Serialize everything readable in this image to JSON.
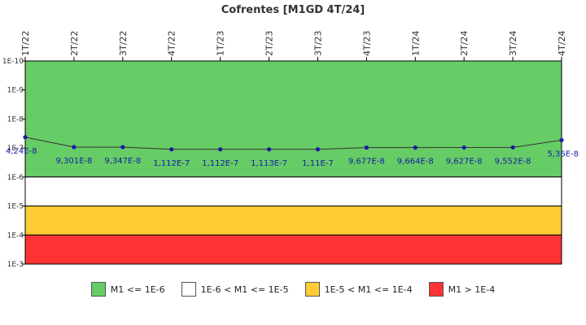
{
  "chart_data": {
    "type": "line",
    "title": "Cofrentes [M1GD 4T/24]",
    "xlabel": "",
    "ylabel": "",
    "y_scale": "log",
    "y_axis_inverted": true,
    "ylim": [
      1e-10,
      0.001
    ],
    "y_ticks": [
      "1E-10",
      "1E-9",
      "1E-8",
      "1E-7",
      "1E-6",
      "1E-5",
      "1E-4",
      "1E-3"
    ],
    "y_tick_values": [
      1e-10,
      1e-09,
      1e-08,
      1e-07,
      1e-06,
      1e-05,
      0.0001,
      0.001
    ],
    "categories": [
      "1T/22",
      "2T/22",
      "3T/22",
      "4T/22",
      "1T/23",
      "2T/23",
      "3T/23",
      "4T/23",
      "1T/24",
      "2T/24",
      "3T/24",
      "4T/24"
    ],
    "series": [
      {
        "name": "",
        "values": [
          4.24e-08,
          9.301e-08,
          9.347e-08,
          1.112e-07,
          1.112e-07,
          1.113e-07,
          1.11e-07,
          9.677e-08,
          9.664e-08,
          9.627e-08,
          9.552e-08,
          5.36e-08
        ],
        "data_labels": [
          "4,24E-8",
          "9,301E-8",
          "9,347E-8",
          "1,112E-7",
          "1,112E-7",
          "1,113E-7",
          "1,11E-7",
          "9,677E-8",
          "9,664E-8",
          "9,627E-8",
          "9,552E-8",
          "5,36E-8"
        ],
        "color": "#1a1aa6"
      }
    ],
    "bands": [
      {
        "from": 1e-10,
        "to": 1e-06,
        "color": "#66cc66",
        "label": "M1 <= 1E-6"
      },
      {
        "from": 1e-06,
        "to": 1e-05,
        "color": "#ffffff",
        "label": "1E-6 < M1 <= 1E-5"
      },
      {
        "from": 1e-05,
        "to": 0.0001,
        "color": "#ffcc33",
        "label": "1E-5 < M1 <= 1E-4"
      },
      {
        "from": 0.0001,
        "to": 0.001,
        "color": "#ff3333",
        "label": "M1 > 1E-4"
      }
    ],
    "legend_position": "bottom"
  }
}
